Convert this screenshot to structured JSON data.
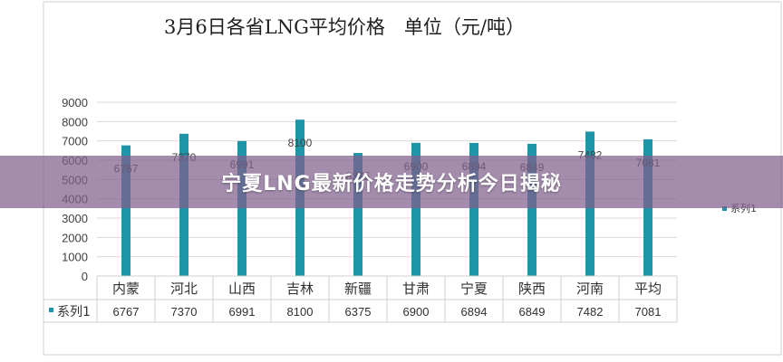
{
  "chart_data": {
    "type": "bar",
    "title": "3月6日各省LNG平均价格　单位（元/吨）",
    "categories": [
      "内蒙",
      "河北",
      "山西",
      "吉林",
      "新疆",
      "甘肃",
      "宁夏",
      "陕西",
      "河南",
      "平均"
    ],
    "series": [
      {
        "name": "系列1",
        "values": [
          6767,
          7370,
          6991,
          8100,
          6375,
          6900,
          6894,
          6849,
          7482,
          7081
        ]
      }
    ],
    "data_labels": [
      "6767",
      "7370",
      "6991",
      "8100",
      "6375",
      "6900",
      "6894",
      "6849",
      "7482",
      "7081"
    ],
    "yticks": [
      "0",
      "1000",
      "2000",
      "3000",
      "4000",
      "5000",
      "6000",
      "7000",
      "8000",
      "9000"
    ],
    "ylim": [
      0,
      9000
    ],
    "grid": true,
    "legend_position": "right",
    "bar_color": "#1e95a8",
    "grid_color": "#d9d9d9",
    "text_color": "#404040"
  },
  "overlay": {
    "caption": "宁夏LNG最新价格走势分析今日揭秘",
    "color": "#80608c"
  }
}
